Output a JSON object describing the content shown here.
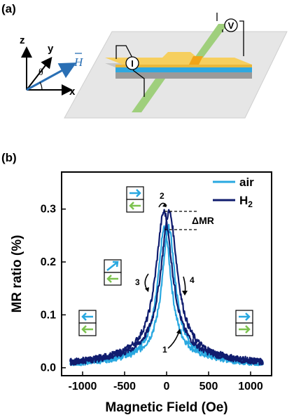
{
  "panel_a": {
    "label": "(a)",
    "axes": {
      "z": "z",
      "y": "y",
      "x": "x",
      "theta": "θ",
      "field": "H"
    },
    "probes": {
      "current": "I",
      "voltage": "V"
    },
    "colors": {
      "gold": "#f6cf5f",
      "gold_dark": "#e9b73c",
      "blue_layer": "#2ea8e0",
      "green_bar": "#9fcf7c",
      "substrate": "#e6e6e6",
      "field_arrow": "#2a6fb4"
    }
  },
  "panel_b": {
    "label": "(b)",
    "annotations": {
      "delta_mr": "ΔMR",
      "step1": "1",
      "step2": "2",
      "step3": "3",
      "step4": "4"
    },
    "colors": {
      "arrow_blue": "#29a8e0",
      "arrow_green": "#7cc24f"
    }
  },
  "chart_data": {
    "type": "line",
    "xlabel": "Magnetic Field (Oe)",
    "ylabel": "MR ratio (%)",
    "xlim": [
      -1250,
      1250
    ],
    "ylim": [
      -0.015,
      0.37
    ],
    "xticks": [
      "-1000",
      "-500",
      "0",
      "500",
      "1000"
    ],
    "yticks": [
      "0.0",
      "0.1",
      "0.2",
      "0.3"
    ],
    "legend_position": "top-right",
    "series": [
      {
        "name": "air",
        "color": "#29a8e0",
        "width_oe": 95,
        "peak_mr": 0.265,
        "switch_oe": 25,
        "x": [
          -1150,
          -1000,
          -800,
          -600,
          -400,
          -200,
          -100,
          -50,
          0,
          50,
          100,
          200,
          400,
          600,
          800,
          1000,
          1150
        ],
        "y": [
          0.0,
          0.008,
          0.012,
          0.022,
          0.035,
          0.08,
          0.15,
          0.21,
          0.265,
          0.21,
          0.15,
          0.08,
          0.035,
          0.022,
          0.012,
          0.008,
          0.0
        ]
      },
      {
        "name": "H2",
        "color": "#101c6e",
        "width_oe": 120,
        "peak_mr": 0.295,
        "switch_oe": 30,
        "x": [
          -1150,
          -1000,
          -800,
          -600,
          -400,
          -200,
          -100,
          -50,
          0,
          50,
          100,
          200,
          400,
          600,
          800,
          1000,
          1150
        ],
        "y": [
          0.005,
          0.012,
          0.018,
          0.03,
          0.05,
          0.11,
          0.19,
          0.25,
          0.295,
          0.25,
          0.19,
          0.11,
          0.05,
          0.03,
          0.018,
          0.012,
          0.005
        ]
      }
    ],
    "legend": {
      "air": "air",
      "h2_main": "H",
      "h2_sub": "2"
    }
  }
}
